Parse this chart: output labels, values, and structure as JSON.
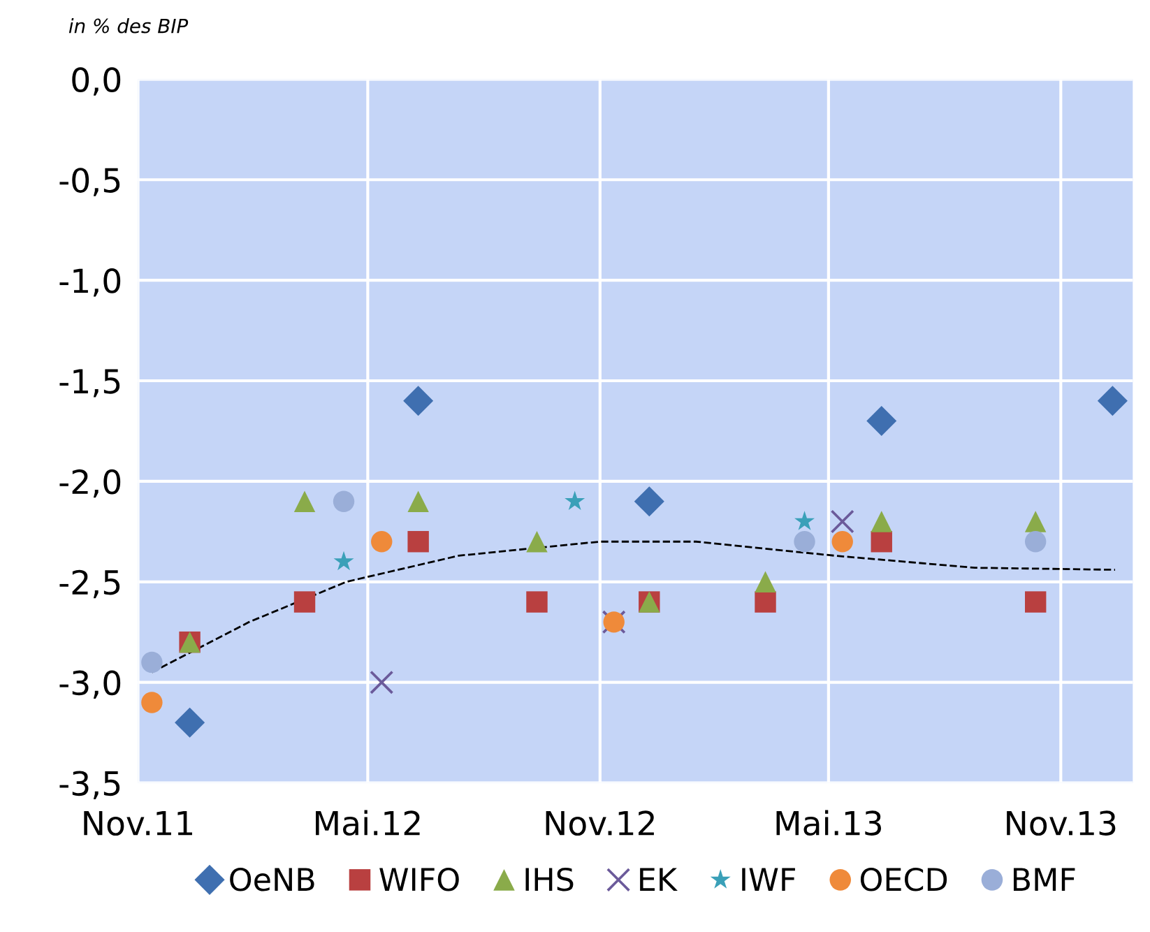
{
  "chart_data": {
    "type": "scatter",
    "ylabel": "in % des BIP",
    "xlim": [
      "2011-11-01",
      "2013-12-28"
    ],
    "xticks": [
      {
        "value": "2011-11-01",
        "label": "Nov.11"
      },
      {
        "value": "2012-05-01",
        "label": "Mai.12"
      },
      {
        "value": "2012-11-01",
        "label": "Nov.12"
      },
      {
        "value": "2013-05-01",
        "label": "Mai.13"
      },
      {
        "value": "2013-11-01",
        "label": "Nov.13"
      }
    ],
    "ylim": [
      -3.5,
      0
    ],
    "yticks": [
      {
        "value": 0,
        "label": "0,0"
      },
      {
        "value": -0.5,
        "label": "-0,5"
      },
      {
        "value": -1,
        "label": "-1,0"
      },
      {
        "value": -1.5,
        "label": "-1,5"
      },
      {
        "value": -2,
        "label": "-2,0"
      },
      {
        "value": -2.5,
        "label": "-2,5"
      },
      {
        "value": -3,
        "label": "-3,0"
      },
      {
        "value": -3.5,
        "label": "-3,5"
      }
    ],
    "grid": true,
    "legend": "bottom",
    "series": [
      {
        "name": "OeNB",
        "color": "#3f6fb0",
        "marker": "diamond",
        "x": [
          "2011-12-12",
          "2012-06-10",
          "2012-12-10",
          "2013-06-12",
          "2013-12-12"
        ],
        "values": [
          -3.2,
          -1.6,
          -2.1,
          -1.7,
          -1.6
        ]
      },
      {
        "name": "WIFO",
        "color": "#b94040",
        "marker": "square",
        "x": [
          "2011-12-12",
          "2012-03-12",
          "2012-06-10",
          "2012-09-12",
          "2012-12-10",
          "2013-03-12",
          "2013-06-12",
          "2013-10-12"
        ],
        "values": [
          -2.8,
          -2.6,
          -2.3,
          -2.6,
          -2.6,
          -2.6,
          -2.3,
          -2.6
        ]
      },
      {
        "name": "IHS",
        "color": "#8aab4a",
        "marker": "triangle",
        "x": [
          "2011-12-12",
          "2012-03-12",
          "2012-06-10",
          "2012-09-12",
          "2012-12-10",
          "2013-03-12",
          "2013-06-12",
          "2013-10-12"
        ],
        "values": [
          -2.8,
          -2.1,
          -2.1,
          -2.3,
          -2.6,
          -2.5,
          -2.2,
          -2.2
        ]
      },
      {
        "name": "EK",
        "color": "#6b5a9a",
        "marker": "cross",
        "x": [
          "2012-05-12",
          "2012-11-12",
          "2013-05-12"
        ],
        "values": [
          -3.0,
          -2.7,
          -2.2
        ]
      },
      {
        "name": "IWF",
        "color": "#3aa0b8",
        "marker": "star",
        "x": [
          "2012-04-12",
          "2012-10-12",
          "2013-04-12"
        ],
        "values": [
          -2.4,
          -2.1,
          -2.2
        ]
      },
      {
        "name": "OECD",
        "color": "#ef8a3a",
        "marker": "circle",
        "x": [
          "2011-11-12",
          "2012-05-12",
          "2012-11-12",
          "2013-05-12"
        ],
        "values": [
          -3.1,
          -2.3,
          -2.7,
          -2.3
        ]
      },
      {
        "name": "BMF",
        "color": "#9aaed8",
        "marker": "circle",
        "x": [
          "2011-11-12",
          "2012-04-12",
          "2013-04-12",
          "2013-10-12"
        ],
        "values": [
          -2.9,
          -2.1,
          -2.3,
          -2.3
        ]
      },
      {
        "type": "line",
        "color": "#000000",
        "marker": "none",
        "line_style": "dashed",
        "x": [
          "2011-11-12",
          "2012-01-28",
          "2012-04-14",
          "2012-07-12",
          "2012-11-01",
          "2013-01-16",
          "2013-05-06",
          "2013-08-25",
          "2013-12-14"
        ],
        "values": [
          -2.95,
          -2.7,
          -2.5,
          -2.37,
          -2.3,
          -2.3,
          -2.37,
          -2.43,
          -2.44
        ]
      }
    ]
  }
}
